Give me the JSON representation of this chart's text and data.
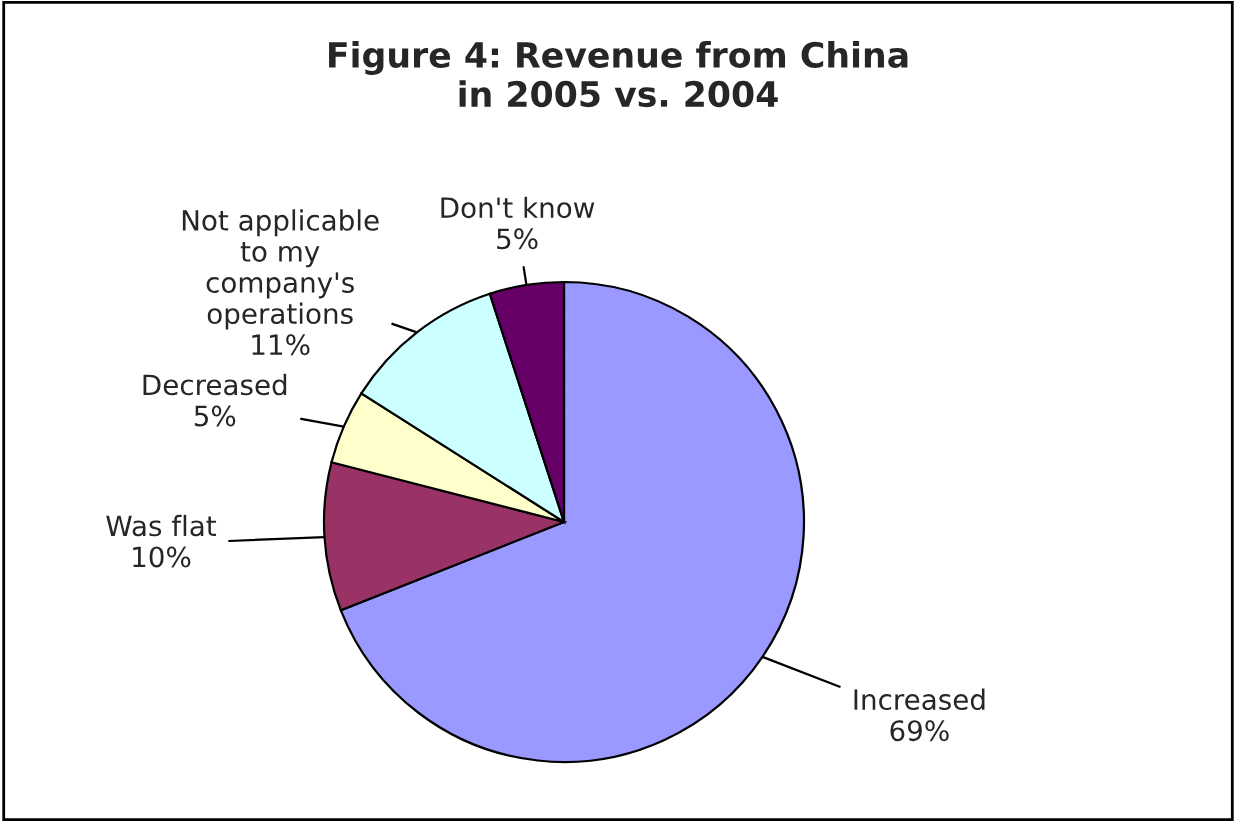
{
  "chart_data": {
    "type": "pie",
    "title": "Figure 4: Revenue from China\nin 2005 vs. 2004",
    "categories": [
      "Increased",
      "Was flat",
      "Decreased",
      "Not applicable\nto my\ncompany's\noperations",
      "Don't know"
    ],
    "values": [
      69,
      10,
      5,
      11,
      5
    ],
    "value_labels": [
      "69%",
      "10%",
      "5%",
      "11%",
      "5%"
    ],
    "colors": [
      "#9999ff",
      "#993366",
      "#ffffcc",
      "#ccffff",
      "#660066"
    ],
    "legend": false
  }
}
